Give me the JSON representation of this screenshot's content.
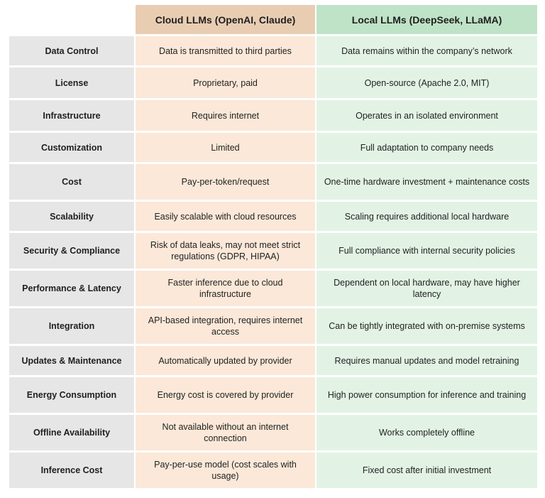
{
  "header": {
    "cloud": "Cloud LLMs (OpenAI, Claude)",
    "local": "Local LLMs (DeepSeek, LLaMA)"
  },
  "rows": [
    {
      "label": "Data Control",
      "cloud": "Data is transmitted to third parties",
      "local": "Data remains within the company’s network"
    },
    {
      "label": "License",
      "cloud": "Proprietary, paid",
      "local": "Open-source (Apache 2.0, MIT)"
    },
    {
      "label": "Infrastructure",
      "cloud": "Requires internet",
      "local": "Operates in an isolated environment"
    },
    {
      "label": "Customization",
      "cloud": "Limited",
      "local": "Full adaptation to company needs"
    },
    {
      "label": "Cost",
      "cloud": "Pay-per-token/request",
      "local": "One-time hardware investment + maintenance costs"
    },
    {
      "label": "Scalability",
      "cloud": "Easily scalable with cloud resources",
      "local": "Scaling requires additional local hardware"
    },
    {
      "label": "Security & Compliance",
      "cloud": "Risk of data leaks, may not meet strict regulations (GDPR, HIPAA)",
      "local": "Full compliance with internal security policies"
    },
    {
      "label": "Performance & Latency",
      "cloud": "Faster inference due to cloud infrastructure",
      "local": "Dependent on local hardware, may have higher latency"
    },
    {
      "label": "Integration",
      "cloud": "API-based integration, requires internet access",
      "local": "Can be tightly integrated with on-premise systems"
    },
    {
      "label": "Updates & Maintenance",
      "cloud": "Automatically updated by provider",
      "local": "Requires manual updates and model retraining"
    },
    {
      "label": "Energy Consumption",
      "cloud": "Energy cost is covered by provider",
      "local": "High power consumption for inference and training"
    },
    {
      "label": "Offline Availability",
      "cloud": "Not available without an internet connection",
      "local": "Works completely offline"
    },
    {
      "label": "Inference Cost",
      "cloud": "Pay-per-use model (cost scales with usage)",
      "local": "Fixed cost after initial investment"
    }
  ],
  "colors": {
    "cloud_header": "#e9cdb3",
    "cloud_cell": "#fbe8d8",
    "local_header": "#bfe3c7",
    "local_cell": "#e2f3e5",
    "label_cell": "#e6e6e6"
  }
}
